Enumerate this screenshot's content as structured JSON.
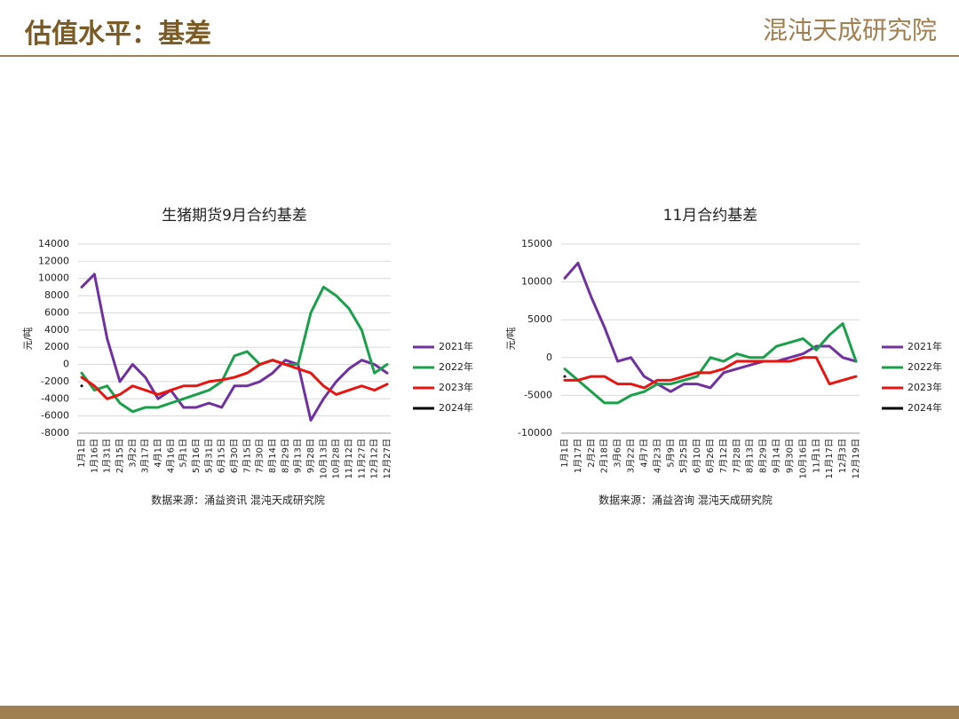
{
  "header": {
    "title": "估值水平：基差",
    "logo": "混沌天成研究院"
  },
  "chart_data": [
    {
      "type": "line",
      "title": "生猪期货9月合约基差",
      "y_label": "元/吨",
      "source": "数据来源：涌益资讯 混沌天成研究院",
      "categories": [
        "1月1日",
        "1月16日",
        "1月31日",
        "2月15日",
        "3月2日",
        "3月17日",
        "4月1日",
        "4月16日",
        "5月1日",
        "5月16日",
        "5月31日",
        "6月15日",
        "6月30日",
        "7月15日",
        "7月30日",
        "8月14日",
        "8月29日",
        "9月13日",
        "9月28日",
        "10月13日",
        "10月28日",
        "11月12日",
        "11月27日",
        "12月12日",
        "12月27日"
      ],
      "ylim": [
        -8000,
        14000
      ],
      "yticks": [
        -8000,
        -6000,
        -4000,
        -2000,
        0,
        2000,
        4000,
        6000,
        8000,
        10000,
        12000,
        14000
      ],
      "grid": true,
      "series": [
        {
          "name": "2021年",
          "color": "#7030a0",
          "values": [
            9000,
            10500,
            3000,
            -2000,
            0,
            -1500,
            -4000,
            -3000,
            -5000,
            -5000,
            -4500,
            -5000,
            -2500,
            -2500,
            -2000,
            -1000,
            500,
            0,
            -6500,
            -4000,
            -2000,
            -500,
            500,
            0,
            -1000
          ]
        },
        {
          "name": "2022年",
          "color": "#1aa04a",
          "values": [
            -1000,
            -3000,
            -2500,
            -4500,
            -5500,
            -5000,
            -5000,
            -4500,
            -4000,
            -3500,
            -3000,
            -2000,
            1000,
            1500,
            0,
            500,
            0,
            0,
            6000,
            9000,
            8000,
            6500,
            4000,
            -1000,
            0
          ]
        },
        {
          "name": "2023年",
          "color": "#e8140f",
          "values": [
            -1500,
            -2500,
            -4000,
            -3500,
            -2500,
            -3000,
            -3500,
            -3000,
            -2500,
            -2500,
            -2000,
            -1800,
            -1500,
            -1000,
            0,
            500,
            0,
            -500,
            -1000,
            -2500,
            -3500,
            -3000,
            -2500,
            -3000,
            -2300
          ]
        },
        {
          "name": "2024年",
          "color": "#000000",
          "values": [
            -2500,
            null,
            null,
            null,
            null,
            null,
            null,
            null,
            null,
            null,
            null,
            null,
            null,
            null,
            null,
            null,
            null,
            null,
            null,
            null,
            null,
            null,
            null,
            null,
            null
          ]
        }
      ]
    },
    {
      "type": "line",
      "title": "11月合约基差",
      "y_label": "元/吨",
      "source": "数据来源：涌益咨询 混沌天成研究院",
      "categories": [
        "1月1日",
        "1月17日",
        "2月2日",
        "2月18日",
        "3月6日",
        "3月22日",
        "4月7日",
        "4月23日",
        "5月9日",
        "5月25日",
        "6月10日",
        "6月26日",
        "7月12日",
        "7月28日",
        "8月13日",
        "8月29日",
        "9月14日",
        "9月30日",
        "10月16日",
        "11月1日",
        "11月17日",
        "12月3日",
        "12月19日"
      ],
      "ylim": [
        -10000,
        15000
      ],
      "yticks": [
        -10000,
        -5000,
        0,
        5000,
        10000,
        15000
      ],
      "grid": true,
      "series": [
        {
          "name": "2021年",
          "color": "#7030a0",
          "values": [
            10500,
            12500,
            8000,
            4000,
            -500,
            0,
            -2500,
            -3500,
            -4500,
            -3500,
            -3500,
            -4000,
            -2000,
            -1500,
            -1000,
            -500,
            -500,
            0,
            500,
            1500,
            1500,
            0,
            -500
          ]
        },
        {
          "name": "2022年",
          "color": "#1aa04a",
          "values": [
            -1500,
            -3000,
            -4500,
            -6000,
            -6000,
            -5000,
            -4500,
            -3500,
            -3500,
            -3000,
            -2500,
            0,
            -500,
            500,
            0,
            0,
            1500,
            2000,
            2500,
            1000,
            3000,
            4500,
            -500
          ]
        },
        {
          "name": "2023年",
          "color": "#e8140f",
          "values": [
            -3000,
            -3000,
            -2500,
            -2500,
            -3500,
            -3500,
            -4000,
            -3000,
            -3000,
            -2500,
            -2000,
            -2000,
            -1500,
            -500,
            -500,
            -500,
            -500,
            -500,
            0,
            0,
            -3500,
            -3000,
            -2500
          ]
        },
        {
          "name": "2024年",
          "color": "#000000",
          "values": [
            -2500,
            null,
            null,
            null,
            null,
            null,
            null,
            null,
            null,
            null,
            null,
            null,
            null,
            null,
            null,
            null,
            null,
            null,
            null,
            null,
            null,
            null,
            null
          ]
        }
      ]
    }
  ]
}
